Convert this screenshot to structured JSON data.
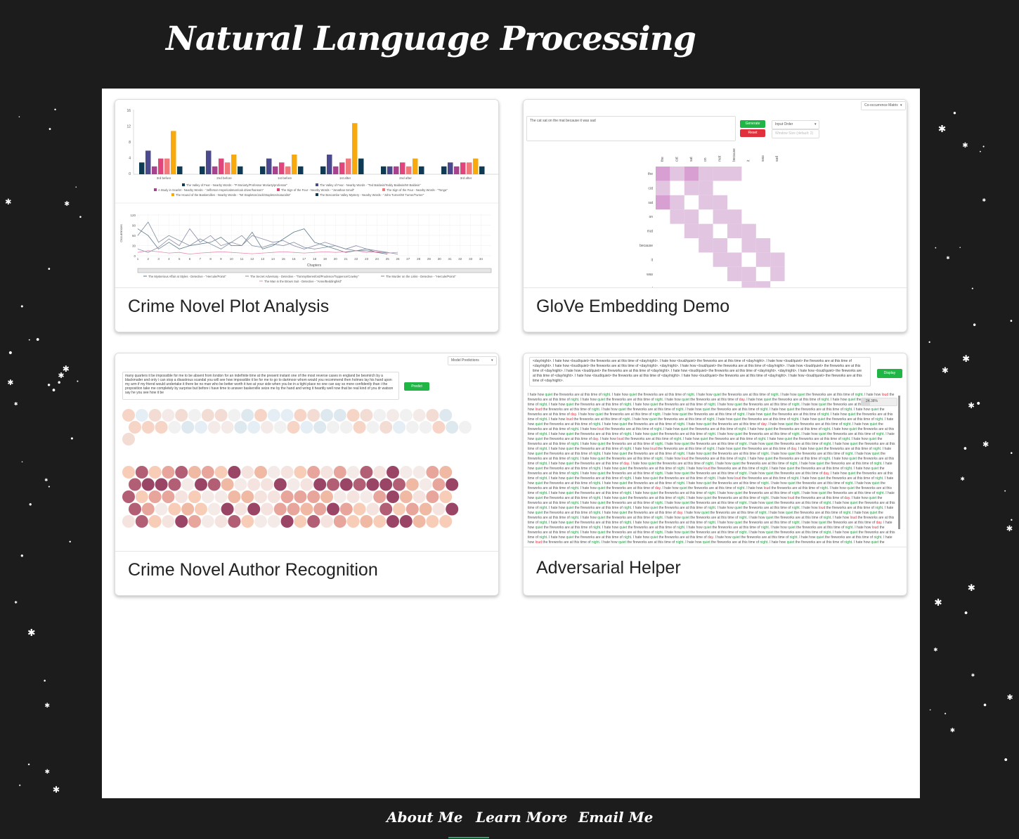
{
  "header": {
    "title": "Natural Language Processing"
  },
  "cards": [
    {
      "title": "Crime Novel Plot Analysis"
    },
    {
      "title": "GloVe Embedding Demo"
    },
    {
      "title": "Crime Novel Author Recognition"
    },
    {
      "title": "Adversarial Helper"
    }
  ],
  "plot_thumb": {
    "bar_y_ticks": [
      "16",
      "12",
      "8",
      "4",
      "0"
    ],
    "bar_x_labels": [
      "3rd before",
      "2nd before",
      "1st before",
      "1st after",
      "2nd after",
      "3rd after"
    ],
    "bar_legend": [
      "The Valley of Fear - Nearby Words - \"P Moriarty/Professor Moriarty/professor\"",
      "The Valley of Fear - Nearby Words - \"Ted Baldwin/Teddy Baldwin/Mr Baldwin\"",
      "A Study in Scarlet - Nearby Words - \"Jefferson Hope/cabman/cab driver/hansom\"",
      "The Sign of the Four - Nearby Words - \"Jonathan Small\"",
      "The Sign of the Four - Nearby Words - \"Tonga\"",
      "The Hound of the Baskervilles - Nearby Words - \"Mr Stapleton/Jack/Stapleton/naturalist\"",
      "The Boscombe Valley Mystery - Nearby Words - \"John Turner/Mr Turner/Turner\""
    ],
    "bar_colors": [
      "#0e3a53",
      "#4b4a8f",
      "#a5438f",
      "#e0457b",
      "#f07a7a",
      "#f8a90c",
      "#0e3a53"
    ],
    "line_y_label": "Occurrences",
    "line_y_ticks": [
      "120",
      "90",
      "60",
      "30",
      "0"
    ],
    "line_x_ticks": [
      "1",
      "2",
      "3",
      "4",
      "5",
      "6",
      "7",
      "8",
      "9",
      "10",
      "11",
      "12",
      "13",
      "14",
      "15",
      "16",
      "17",
      "18",
      "19",
      "20",
      "21",
      "22",
      "23",
      "24",
      "25",
      "26",
      "27",
      "28",
      "29",
      "30",
      "31",
      "32",
      "33",
      "34"
    ],
    "line_x_label": "Chapters",
    "line_legend": [
      "The Mysterious Affair at Styles - Detective - \"Hercule/Poirot\"",
      "The Secret Adversary - Detective - \"Tommy/Beresford/Prudence/Tuppence/Cowley\"",
      "The Murder on the Links - Detective - \"Hercule/Poirot\"",
      "The Man in the Brown Suit - Detective - \"Anne/Beddingfeld\""
    ]
  },
  "glove_thumb": {
    "dropdown": "Co-occurrence Matrix",
    "input_text": "The cat sat on the mat because it was sad",
    "generate_label": "Generate",
    "reset_label": "Reset",
    "order_select": "Input Order",
    "window_placeholder": "Window Size (default: 2)",
    "words": [
      "the",
      "cat",
      "sat",
      "on",
      "mat",
      "because",
      "it",
      "was",
      "sad"
    ]
  },
  "author_thumb": {
    "dropdown": "Model Predictions",
    "input_text": "many quarters it be impossible for me to be absent from london for an indefinite time at the present instant one of the most reverse cases in england be besmirch by a blackmailer and only i can stop a disastrous scandal you will see how impossible it be for me to go to dartmoor whom would you recommend then holmes lay his hand upon my arm if my friend would undertake it there be no man who be better worth it two at your side when you be in a tight place no one can say so more confidently than i the proposition take me completely by surprise but before i have time to answer baskerville seize me by the hand and wring it heartily well now that be real kind of you dr watson say he you see how it be",
    "predict_label": "Predict"
  },
  "adversarial_thumb": {
    "input_text": "<day/night>. I hate how <loud/quiet> the fireworks are at this time of <day/night>. I hate how <loud/quiet> the fireworks are at this time of <day/night>. I hate how <loud/quiet> the fireworks are at this time of <day/night>. I hate how <loud/quiet> the fireworks are at this time of <day/night>.",
    "display_label": "Display",
    "progress_label": "24.38%",
    "progress": 0.2438,
    "output_sentence": "I hate how quiet the fireworks are at this time of night."
  },
  "footer": {
    "links": [
      "About Me",
      "Learn More",
      "Email Me"
    ]
  }
}
